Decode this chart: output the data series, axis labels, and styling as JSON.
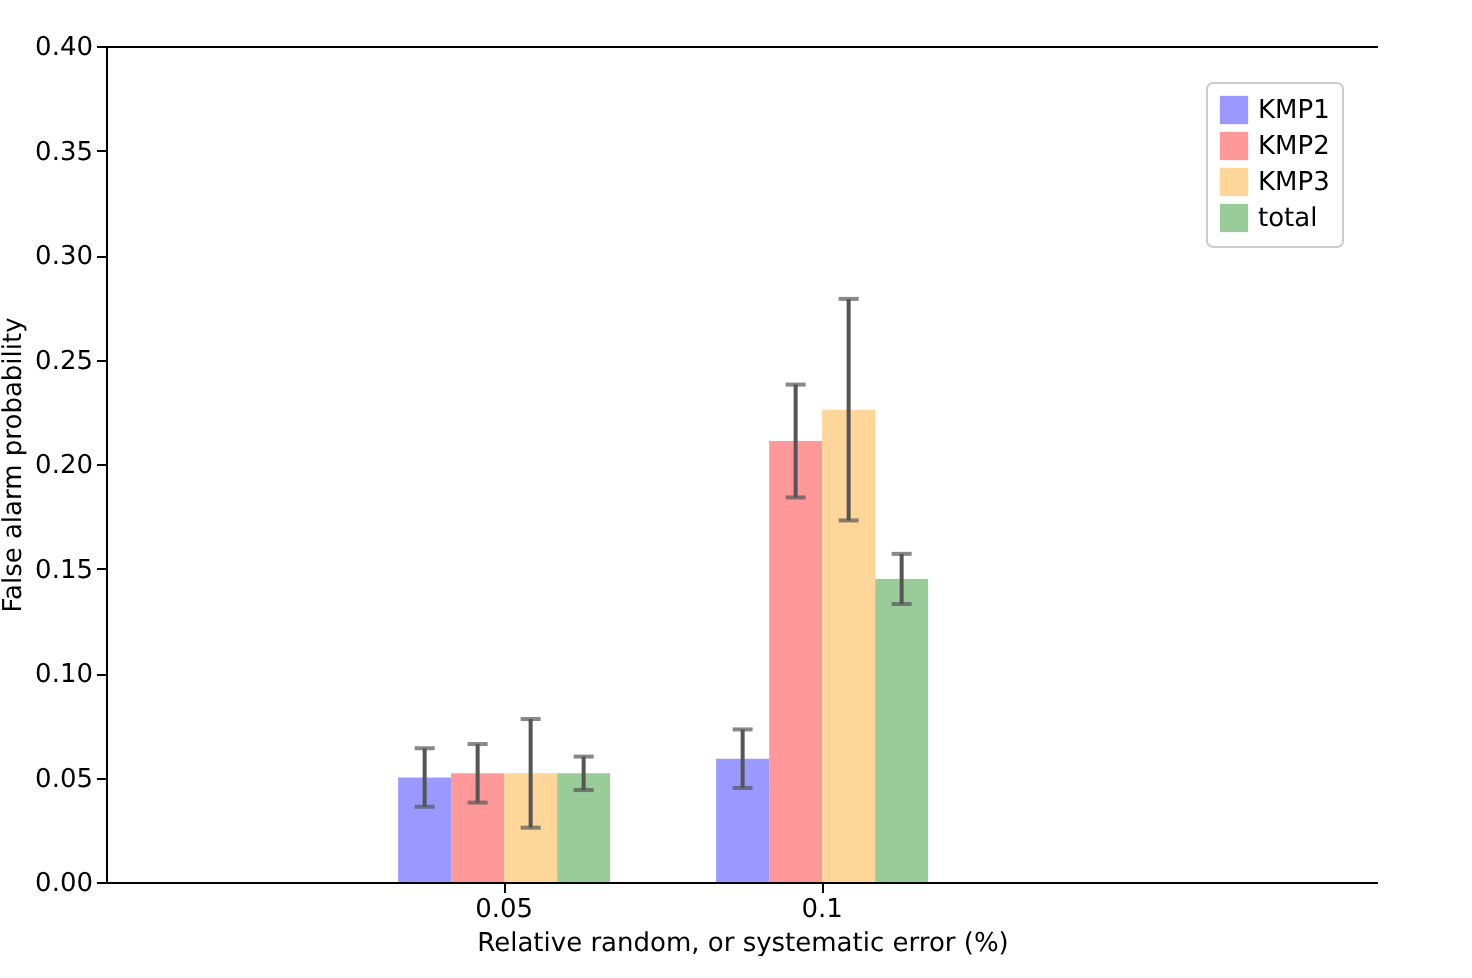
{
  "chart_data": {
    "type": "bar",
    "xlabel": "Relative random, or systematic error (%)",
    "ylabel": "False alarm probability",
    "categories": [
      "0.05",
      "0.1"
    ],
    "series": [
      {
        "name": "KMP1",
        "color": "#9999ff",
        "values": [
          0.05,
          0.059
        ],
        "errors": [
          0.014,
          0.014
        ]
      },
      {
        "name": "KMP2",
        "color": "#ff9999",
        "values": [
          0.052,
          0.211
        ],
        "errors": [
          0.014,
          0.027
        ]
      },
      {
        "name": "KMP3",
        "color": "#ffd699",
        "values": [
          0.052,
          0.226
        ],
        "errors": [
          0.026,
          0.053
        ]
      },
      {
        "name": "total",
        "color": "#99cc99",
        "values": [
          0.052,
          0.145
        ],
        "errors": [
          0.008,
          0.012
        ]
      }
    ],
    "ylim": [
      0,
      0.4
    ],
    "yticks": [
      {
        "value": 0,
        "label": "0.00"
      },
      {
        "value": 0.05,
        "label": "0.05"
      },
      {
        "value": 0.1,
        "label": "0.10"
      },
      {
        "value": 0.15,
        "label": "0.15"
      },
      {
        "value": 0.2,
        "label": "0.20"
      },
      {
        "value": 0.25,
        "label": "0.25"
      },
      {
        "value": 0.3,
        "label": "0.30"
      },
      {
        "value": 0.35,
        "label": "0.35"
      },
      {
        "value": 0.4,
        "label": "0.40"
      }
    ],
    "grid": false,
    "legend": "top right"
  }
}
